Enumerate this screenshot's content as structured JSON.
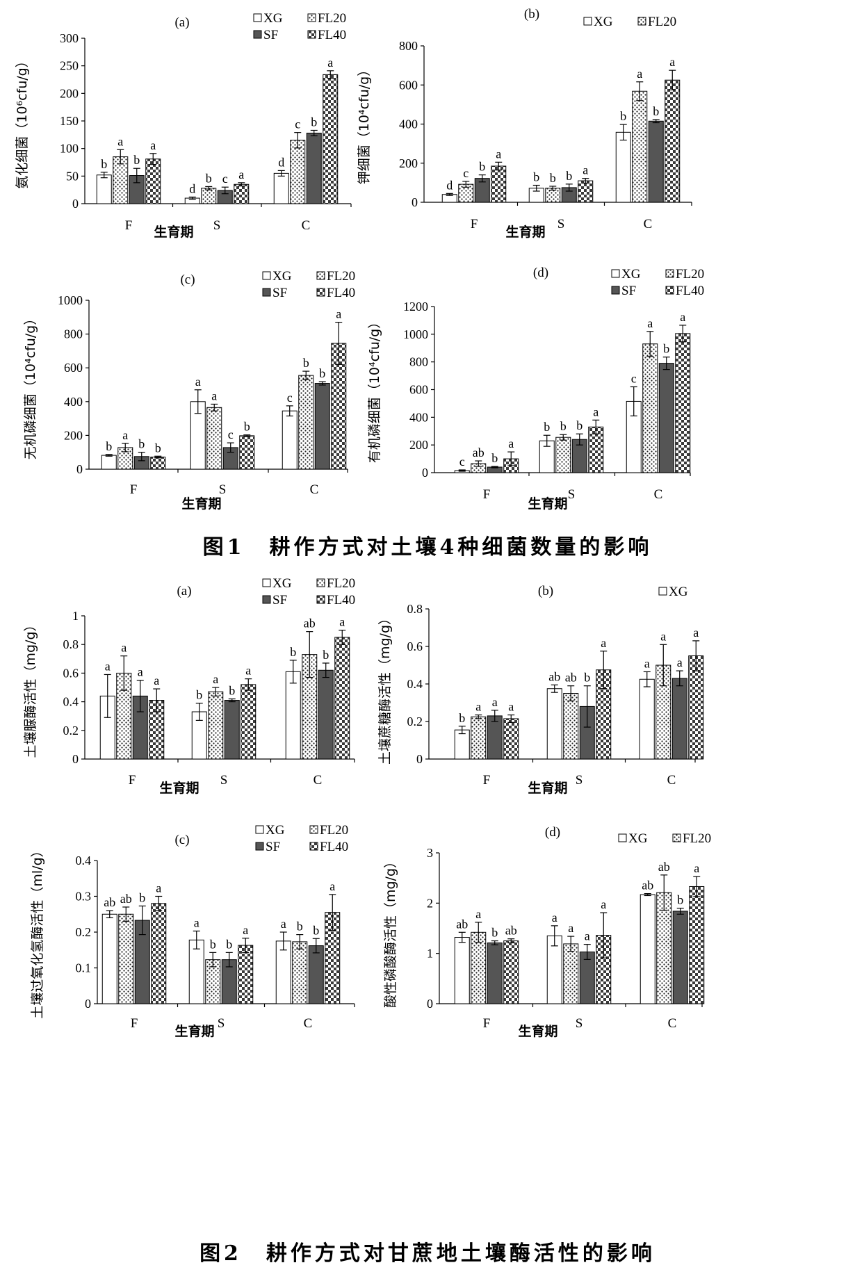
{
  "figures": [
    {
      "caption": "图1　耕作方式对土壤4种细菌数量的影响"
    },
    {
      "caption": "图2　耕作方式对甘蔗地土壤酶活性的影响"
    }
  ],
  "chart_data": [
    {
      "type": "bar",
      "panel": "(a)",
      "ylabel": "氨化细菌（10⁶cfu/g）",
      "xlabel": "生育期",
      "categories": [
        "F",
        "S",
        "C"
      ],
      "ylim": [
        0,
        300
      ],
      "yticks": [
        0,
        50,
        100,
        150,
        200,
        250,
        300
      ],
      "legend": [
        "XG",
        "FL20",
        "SF",
        "FL40"
      ],
      "series": [
        {
          "name": "XG",
          "values": [
            52,
            10,
            55
          ],
          "err": [
            5,
            2,
            5
          ],
          "sig": [
            "b",
            "d",
            "d"
          ]
        },
        {
          "name": "FL20",
          "values": [
            85,
            28,
            115
          ],
          "err": [
            13,
            3,
            14
          ],
          "sig": [
            "a",
            "b",
            "c"
          ]
        },
        {
          "name": "SF",
          "values": [
            51,
            24,
            128
          ],
          "err": [
            13,
            6,
            5
          ],
          "sig": [
            "b",
            "c",
            "b"
          ]
        },
        {
          "name": "FL40",
          "values": [
            81,
            35,
            234
          ],
          "err": [
            10,
            3,
            7
          ],
          "sig": [
            "a",
            "a",
            "a"
          ]
        }
      ]
    },
    {
      "type": "bar",
      "panel": "(b)",
      "ylabel": "钾细菌（10⁴cfu/g）",
      "xlabel": "生育期",
      "categories": [
        "F",
        "S",
        "C"
      ],
      "ylim": [
        0,
        800
      ],
      "yticks": [
        0,
        200,
        400,
        600,
        800
      ],
      "legend": [
        "XG",
        "FL20"
      ],
      "series": [
        {
          "name": "XG",
          "values": [
            40,
            72,
            358
          ],
          "err": [
            5,
            15,
            40
          ],
          "sig": [
            "d",
            "b",
            "b"
          ]
        },
        {
          "name": "FL20",
          "values": [
            92,
            72,
            568
          ],
          "err": [
            15,
            10,
            48
          ],
          "sig": [
            "c",
            "b",
            "a"
          ]
        },
        {
          "name": "SF",
          "values": [
            122,
            75,
            415
          ],
          "err": [
            18,
            18,
            8
          ],
          "sig": [
            "b",
            "b",
            "b"
          ]
        },
        {
          "name": "FL40",
          "values": [
            185,
            110,
            625
          ],
          "err": [
            20,
            12,
            50
          ],
          "sig": [
            "a",
            "a",
            "a"
          ]
        }
      ]
    },
    {
      "type": "bar",
      "panel": "(c)",
      "ylabel": "无机磷细菌（10⁴cfu/g）",
      "xlabel": "生育期",
      "categories": [
        "F",
        "S",
        "C"
      ],
      "ylim": [
        0,
        1000
      ],
      "yticks": [
        0,
        200,
        400,
        600,
        800,
        1000
      ],
      "legend": [
        "XG",
        "FL20",
        "SF",
        "FL40"
      ],
      "series": [
        {
          "name": "XG",
          "values": [
            82,
            400,
            345
          ],
          "err": [
            5,
            70,
            30
          ],
          "sig": [
            "b",
            "a",
            "c"
          ]
        },
        {
          "name": "FL20",
          "values": [
            128,
            365,
            555
          ],
          "err": [
            25,
            20,
            25
          ],
          "sig": [
            "a",
            "a",
            "b"
          ]
        },
        {
          "name": "SF",
          "values": [
            75,
            128,
            508
          ],
          "err": [
            25,
            28,
            10
          ],
          "sig": [
            "b",
            "c",
            "b"
          ]
        },
        {
          "name": "FL40",
          "values": [
            72,
            198,
            745
          ],
          "err": [
            5,
            5,
            125
          ],
          "sig": [
            "b",
            "b",
            "a"
          ]
        }
      ]
    },
    {
      "type": "bar",
      "panel": "(d)",
      "ylabel": "有机磷细菌（10⁴cfu/g）",
      "xlabel": "生育期",
      "categories": [
        "F",
        "S",
        "C"
      ],
      "ylim": [
        0,
        1200
      ],
      "yticks": [
        0,
        200,
        400,
        600,
        800,
        1000,
        1200
      ],
      "legend": [
        "XG",
        "FL20",
        "SF",
        "FL40"
      ],
      "series": [
        {
          "name": "XG",
          "values": [
            15,
            230,
            515
          ],
          "err": [
            5,
            40,
            105
          ],
          "sig": [
            "c",
            "b",
            "c"
          ]
        },
        {
          "name": "FL20",
          "values": [
            65,
            255,
            930
          ],
          "err": [
            20,
            20,
            90
          ],
          "sig": [
            "ab",
            "b",
            "a"
          ]
        },
        {
          "name": "SF",
          "values": [
            40,
            240,
            790
          ],
          "err": [
            5,
            40,
            45
          ],
          "sig": [
            "b",
            "b",
            "b"
          ]
        },
        {
          "name": "FL40",
          "values": [
            100,
            330,
            1005
          ],
          "err": [
            50,
            50,
            60
          ],
          "sig": [
            "a",
            "a",
            "a"
          ]
        }
      ]
    },
    {
      "type": "bar",
      "panel": "(a)",
      "ylabel": "土壤脲酶活性（mg/g）",
      "xlabel": "生育期",
      "categories": [
        "F",
        "S",
        "C"
      ],
      "ylim": [
        0,
        1
      ],
      "yticks": [
        0,
        0.2,
        0.4,
        0.6,
        0.8,
        1
      ],
      "legend": [
        "XG",
        "FL20",
        "SF",
        "FL40"
      ],
      "series": [
        {
          "name": "XG",
          "values": [
            0.44,
            0.33,
            0.61
          ],
          "err": [
            0.15,
            0.06,
            0.08
          ],
          "sig": [
            "a",
            "b",
            "b"
          ]
        },
        {
          "name": "FL20",
          "values": [
            0.6,
            0.47,
            0.73
          ],
          "err": [
            0.12,
            0.03,
            0.16
          ],
          "sig": [
            "a",
            "a",
            "ab"
          ]
        },
        {
          "name": "SF",
          "values": [
            0.44,
            0.41,
            0.62
          ],
          "err": [
            0.11,
            0.01,
            0.05
          ],
          "sig": [
            "a",
            "b",
            "b"
          ]
        },
        {
          "name": "FL40",
          "values": [
            0.41,
            0.52,
            0.85
          ],
          "err": [
            0.08,
            0.04,
            0.05
          ],
          "sig": [
            "a",
            "a",
            "a"
          ]
        }
      ]
    },
    {
      "type": "bar",
      "panel": "(b)",
      "ylabel": "土壤蔗糖酶活性（mg/g）",
      "xlabel": "生育期",
      "categories": [
        "F",
        "S",
        "C"
      ],
      "ylim": [
        0,
        0.8
      ],
      "yticks": [
        0,
        0.2,
        0.4,
        0.6,
        0.8
      ],
      "legend": [
        "XG"
      ],
      "series": [
        {
          "name": "XG",
          "values": [
            0.155,
            0.375,
            0.425
          ],
          "err": [
            0.02,
            0.02,
            0.04
          ],
          "sig": [
            "b",
            "ab",
            "a"
          ]
        },
        {
          "name": "FL20",
          "values": [
            0.225,
            0.35,
            0.5
          ],
          "err": [
            0.01,
            0.04,
            0.11
          ],
          "sig": [
            "a",
            "ab",
            "a"
          ]
        },
        {
          "name": "SF",
          "values": [
            0.23,
            0.28,
            0.43
          ],
          "err": [
            0.03,
            0.11,
            0.04
          ],
          "sig": [
            "a",
            "b",
            "a"
          ]
        },
        {
          "name": "FL40",
          "values": [
            0.215,
            0.475,
            0.55
          ],
          "err": [
            0.02,
            0.1,
            0.08
          ],
          "sig": [
            "a",
            "a",
            "a"
          ]
        }
      ]
    },
    {
      "type": "bar",
      "panel": "(c)",
      "ylabel": "土壤过氧化氢酶活性（ml/g）",
      "xlabel": "生育期",
      "categories": [
        "F",
        "S",
        "C"
      ],
      "ylim": [
        0,
        0.4
      ],
      "yticks": [
        0,
        0.1,
        0.2,
        0.3,
        0.4
      ],
      "legend": [
        "XG",
        "FL20",
        "SF",
        "FL40"
      ],
      "series": [
        {
          "name": "XG",
          "values": [
            0.25,
            0.178,
            0.175
          ],
          "err": [
            0.01,
            0.025,
            0.025
          ],
          "sig": [
            "ab",
            "a",
            "a"
          ]
        },
        {
          "name": "FL20",
          "values": [
            0.25,
            0.123,
            0.173
          ],
          "err": [
            0.02,
            0.02,
            0.02
          ],
          "sig": [
            "ab",
            "b",
            "b"
          ]
        },
        {
          "name": "SF",
          "values": [
            0.233,
            0.123,
            0.162
          ],
          "err": [
            0.04,
            0.02,
            0.02
          ],
          "sig": [
            "b",
            "b",
            "b"
          ]
        },
        {
          "name": "FL40",
          "values": [
            0.28,
            0.163,
            0.255
          ],
          "err": [
            0.02,
            0.02,
            0.05
          ],
          "sig": [
            "a",
            "a",
            "a"
          ]
        }
      ]
    },
    {
      "type": "bar",
      "panel": "(d)",
      "ylabel": "酸性磷酸酶活性（mg/g）",
      "xlabel": "生育期",
      "categories": [
        "F",
        "S",
        "C"
      ],
      "ylim": [
        0,
        3
      ],
      "yticks": [
        0,
        1,
        2,
        3
      ],
      "legend": [
        "XG",
        "FL20"
      ],
      "series": [
        {
          "name": "XG",
          "values": [
            1.32,
            1.35,
            2.17
          ],
          "err": [
            0.1,
            0.2,
            0.02
          ],
          "sig": [
            "ab",
            "a",
            "ab"
          ]
        },
        {
          "name": "FL20",
          "values": [
            1.42,
            1.19,
            2.21
          ],
          "err": [
            0.2,
            0.15,
            0.35
          ],
          "sig": [
            "a",
            "a",
            "ab"
          ]
        },
        {
          "name": "SF",
          "values": [
            1.21,
            1.03,
            1.84
          ],
          "err": [
            0.04,
            0.15,
            0.06
          ],
          "sig": [
            "b",
            "a",
            "b"
          ]
        },
        {
          "name": "FL40",
          "values": [
            1.25,
            1.36,
            2.33
          ],
          "err": [
            0.04,
            0.45,
            0.2
          ],
          "sig": [
            "ab",
            "a",
            "a"
          ]
        }
      ]
    }
  ]
}
